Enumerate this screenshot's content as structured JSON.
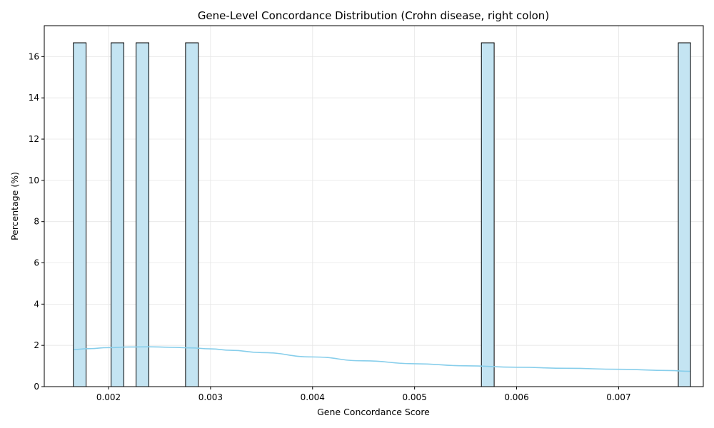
{
  "chart_data": {
    "type": "bar",
    "title": "Gene-Level Concordance Distribution (Crohn disease, right colon)",
    "xlabel": "Gene Concordance Score",
    "ylabel": "Percentage (%)",
    "xlim": [
      0.00137,
      0.00783
    ],
    "ylim": [
      0,
      17.5
    ],
    "x_ticks": [
      "0.002",
      "0.003",
      "0.004",
      "0.005",
      "0.006",
      "0.007"
    ],
    "x_tick_values": [
      0.002,
      0.003,
      0.004,
      0.005,
      0.006,
      0.007
    ],
    "y_ticks": [
      "0",
      "2",
      "4",
      "6",
      "8",
      "10",
      "12",
      "14",
      "16"
    ],
    "y_tick_values": [
      0,
      2,
      4,
      6,
      8,
      10,
      12,
      14,
      16
    ],
    "grid": true,
    "bar_color": "#c4e4f2",
    "bar_edge_color": "#000000",
    "kde_color": "#87ceeb",
    "series": [
      {
        "type": "histogram",
        "bins": [
          {
            "x0": 0.001655,
            "x1": 0.00178,
            "value": 16.67
          },
          {
            "x0": 0.002025,
            "x1": 0.00215,
            "value": 16.67
          },
          {
            "x0": 0.00227,
            "x1": 0.002395,
            "value": 16.67
          },
          {
            "x0": 0.002755,
            "x1": 0.00288,
            "value": 16.67
          },
          {
            "x0": 0.005655,
            "x1": 0.00578,
            "value": 16.67
          },
          {
            "x0": 0.007585,
            "x1": 0.007705,
            "value": 16.67
          }
        ]
      },
      {
        "type": "kde-line",
        "x": [
          0.00166,
          0.0018,
          0.002,
          0.0022,
          0.0024,
          0.0026,
          0.0028,
          0.003,
          0.0032,
          0.0035,
          0.004,
          0.0045,
          0.005,
          0.0055,
          0.006,
          0.0065,
          0.007,
          0.0075,
          0.0077
        ],
        "y": [
          1.8,
          1.84,
          1.89,
          1.92,
          1.93,
          1.91,
          1.88,
          1.83,
          1.76,
          1.65,
          1.44,
          1.25,
          1.11,
          1.01,
          0.94,
          0.89,
          0.84,
          0.78,
          0.74
        ]
      }
    ]
  }
}
